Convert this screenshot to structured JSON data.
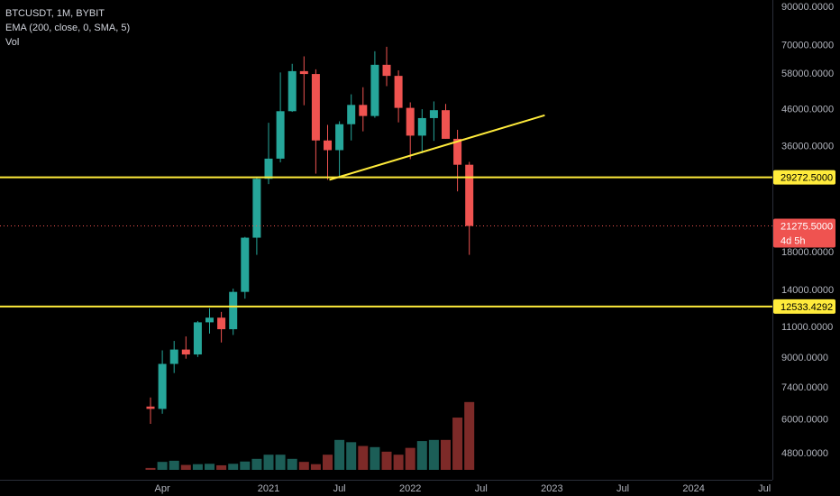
{
  "legend": {
    "symbol": "BTCUSDT, 1M, BYBIT",
    "ema": "EMA (200, close, 0, SMA, 5)",
    "vol": "Vol"
  },
  "price_axis": [
    "90000.0000",
    "70000.0000",
    "58000.0000",
    "46000.0000",
    "36000.0000",
    "29272.5000",
    "21275.5000",
    "18000.0000",
    "14000.0000",
    "12533.4292",
    "11000.0000",
    "9000.0000",
    "7400.0000",
    "6000.0000",
    "4800.0000"
  ],
  "time_axis": [
    "Apr",
    "2021",
    "Jul",
    "2022",
    "Jul",
    "2023",
    "Jul",
    "2024",
    "Jul"
  ],
  "tags": {
    "resistance": "29272.5000",
    "last_price": "21275.5000",
    "countdown": "4d 5h",
    "support": "12533.4292"
  },
  "colors": {
    "up": "#26a69a",
    "down": "#ef5350",
    "vol_up": "#1c5e57",
    "vol_down": "#7d2a28",
    "hline": "#ffeb3b",
    "trend": "#ffeb3b",
    "bg": "#000000"
  },
  "chart_data": {
    "type": "candlestick",
    "interval": "1M",
    "scale": "log",
    "ylim": [
      4200,
      100000
    ],
    "candles": [
      {
        "t": "2020-03",
        "o": 6500,
        "h": 6900,
        "l": 5800,
        "c": 6400
      },
      {
        "t": "2020-04",
        "o": 6400,
        "h": 9400,
        "l": 6200,
        "c": 8600
      },
      {
        "t": "2020-05",
        "o": 8600,
        "h": 10000,
        "l": 8100,
        "c": 9450
      },
      {
        "t": "2020-06",
        "o": 9450,
        "h": 10300,
        "l": 8900,
        "c": 9150
      },
      {
        "t": "2020-07",
        "o": 9150,
        "h": 11400,
        "l": 9000,
        "c": 11300
      },
      {
        "t": "2020-08",
        "o": 11300,
        "h": 12400,
        "l": 10500,
        "c": 11650
      },
      {
        "t": "2020-09",
        "o": 11650,
        "h": 12100,
        "l": 9900,
        "c": 10800
      },
      {
        "t": "2020-10",
        "o": 10800,
        "h": 14100,
        "l": 10400,
        "c": 13800
      },
      {
        "t": "2020-11",
        "o": 13800,
        "h": 19800,
        "l": 13200,
        "c": 19700
      },
      {
        "t": "2020-12",
        "o": 19700,
        "h": 29300,
        "l": 17600,
        "c": 29000
      },
      {
        "t": "2021-01",
        "o": 29000,
        "h": 41900,
        "l": 28000,
        "c": 33100
      },
      {
        "t": "2021-02",
        "o": 33100,
        "h": 58300,
        "l": 32300,
        "c": 45200
      },
      {
        "t": "2021-03",
        "o": 45200,
        "h": 61700,
        "l": 45000,
        "c": 58800
      },
      {
        "t": "2021-04",
        "o": 58800,
        "h": 64800,
        "l": 47000,
        "c": 57700
      },
      {
        "t": "2021-05",
        "o": 57700,
        "h": 59500,
        "l": 30000,
        "c": 37300
      },
      {
        "t": "2021-06",
        "o": 37300,
        "h": 41300,
        "l": 28800,
        "c": 35000
      },
      {
        "t": "2021-07",
        "o": 35000,
        "h": 42300,
        "l": 29300,
        "c": 41500
      },
      {
        "t": "2021-08",
        "o": 41500,
        "h": 50500,
        "l": 37300,
        "c": 47100
      },
      {
        "t": "2021-09",
        "o": 47100,
        "h": 52900,
        "l": 39600,
        "c": 43800
      },
      {
        "t": "2021-10",
        "o": 43800,
        "h": 67000,
        "l": 43300,
        "c": 61300
      },
      {
        "t": "2021-11",
        "o": 61300,
        "h": 69000,
        "l": 53300,
        "c": 57000
      },
      {
        "t": "2021-12",
        "o": 57000,
        "h": 59100,
        "l": 42000,
        "c": 46200
      },
      {
        "t": "2022-01",
        "o": 46200,
        "h": 47900,
        "l": 33000,
        "c": 38500
      },
      {
        "t": "2022-02",
        "o": 38500,
        "h": 45800,
        "l": 34300,
        "c": 43200
      },
      {
        "t": "2022-03",
        "o": 43200,
        "h": 48200,
        "l": 37200,
        "c": 45500
      },
      {
        "t": "2022-04",
        "o": 45500,
        "h": 47400,
        "l": 37700,
        "c": 37700
      },
      {
        "t": "2022-05",
        "o": 37700,
        "h": 40000,
        "l": 26700,
        "c": 31800
      },
      {
        "t": "2022-06",
        "o": 31800,
        "h": 32400,
        "l": 17600,
        "c": 21275.5
      }
    ],
    "volume_relative": [
      0.05,
      0.21,
      0.24,
      0.13,
      0.15,
      0.16,
      0.12,
      0.16,
      0.22,
      0.29,
      0.4,
      0.4,
      0.29,
      0.21,
      0.15,
      0.4,
      0.79,
      0.73,
      0.63,
      0.6,
      0.48,
      0.4,
      0.58,
      0.76,
      0.79,
      0.79,
      1.38,
      1.79
    ],
    "hlines": [
      29272.5,
      12533.4292
    ],
    "trendline": {
      "from": {
        "t": "2021-06",
        "price": 28800
      },
      "to": {
        "t": "2023-01",
        "price": 44000
      }
    },
    "last_price": 21275.5
  }
}
